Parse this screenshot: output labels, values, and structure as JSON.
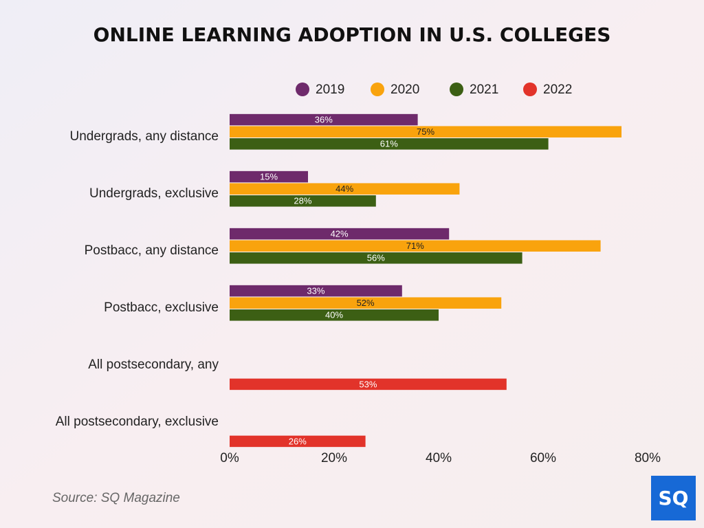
{
  "chart_data": {
    "type": "hbar",
    "title": "ONLINE LEARNING ADOPTION IN U.S. COLLEGES",
    "categories": [
      "Undergrads, any distance",
      "Undergrads, exclusive",
      "Postbacc, any distance",
      "Postbacc, exclusive",
      "All postsecondary, any",
      "All postsecondary, exclusive"
    ],
    "series": [
      {
        "name": "2019",
        "color": "#6e2a6b",
        "label_color": "#ffffff",
        "values": [
          36,
          15,
          42,
          33,
          null,
          null
        ],
        "value_labels": [
          "36%",
          "15%",
          "42%",
          "33%",
          null,
          null
        ]
      },
      {
        "name": "2020",
        "color": "#f9a30d",
        "label_color": "#222222",
        "values": [
          75,
          44,
          71,
          52,
          null,
          null
        ],
        "value_labels": [
          "75%",
          "44%",
          "71%",
          "52%",
          null,
          null
        ]
      },
      {
        "name": "2021",
        "color": "#3c5f14",
        "label_color": "#ffffff",
        "values": [
          61,
          28,
          56,
          40,
          null,
          null
        ],
        "value_labels": [
          "61%",
          "28%",
          "56%",
          "40%",
          null,
          null
        ]
      },
      {
        "name": "2022",
        "color": "#e2332a",
        "label_color": "#ffffff",
        "values": [
          null,
          null,
          null,
          null,
          53,
          26
        ],
        "value_labels": [
          null,
          null,
          null,
          null,
          "53%",
          "26%"
        ]
      }
    ],
    "xlim": [
      0,
      80
    ],
    "xticks": [
      {
        "value": 0,
        "label": "0%"
      },
      {
        "value": 20,
        "label": "20%"
      },
      {
        "value": 40,
        "label": "40%"
      },
      {
        "value": 60,
        "label": "60%"
      },
      {
        "value": 80,
        "label": "80%"
      }
    ],
    "grid": false,
    "legend": "top",
    "source": "Source: SQ Magazine",
    "logo": "SQ"
  }
}
